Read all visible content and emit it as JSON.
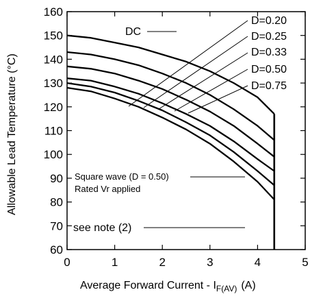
{
  "chart_data": {
    "type": "line",
    "title": "",
    "xlabel": "Average Forward Current - I",
    "xlabel_subscript": "F(AV)",
    "xlabel_unit": "(A)",
    "ylabel": "Allowable Lead Temperature (°C)",
    "xlim": [
      0,
      5
    ],
    "ylim": [
      60,
      160
    ],
    "x_ticks": [
      0,
      1,
      2,
      3,
      4,
      5
    ],
    "y_ticks": [
      60,
      70,
      80,
      90,
      100,
      110,
      120,
      130,
      140,
      150,
      160
    ],
    "grid": false,
    "series": [
      {
        "name": "DC",
        "x": [
          0,
          0.5,
          1,
          1.5,
          2,
          2.5,
          3,
          3.5,
          4,
          4.35
        ],
        "y": [
          150,
          149,
          147,
          145,
          142,
          139,
          135,
          130,
          124,
          117
        ]
      },
      {
        "name": "D=0.20",
        "x": [
          0,
          0.5,
          1,
          1.5,
          2,
          2.5,
          3,
          3.5,
          4,
          4.35
        ],
        "y": [
          143,
          142,
          140,
          137.5,
          134,
          130,
          125,
          119,
          112,
          106
        ]
      },
      {
        "name": "D=0.25",
        "x": [
          0,
          0.5,
          1,
          1.5,
          2,
          2.5,
          3,
          3.5,
          4,
          4.35
        ],
        "y": [
          137,
          136,
          134,
          131,
          127.5,
          123,
          118,
          112,
          104.5,
          99
        ]
      },
      {
        "name": "D=0.33",
        "x": [
          0,
          0.5,
          1,
          1.5,
          2,
          2.5,
          3,
          3.5,
          4,
          4.35
        ],
        "y": [
          132,
          131,
          128.5,
          125.5,
          121.5,
          117,
          112,
          105.5,
          98,
          93
        ]
      },
      {
        "name": "D=0.50",
        "x": [
          0,
          0.5,
          1,
          1.5,
          2,
          2.5,
          3,
          3.5,
          4,
          4.35
        ],
        "y": [
          130,
          128.5,
          126,
          122.5,
          118.5,
          113.5,
          108,
          101,
          93,
          87
        ]
      },
      {
        "name": "D=0.75",
        "x": [
          0,
          0.5,
          1,
          1.5,
          2,
          2.5,
          3,
          3.5,
          4,
          4.35
        ],
        "y": [
          128,
          126.5,
          123.5,
          120,
          115.5,
          110.5,
          104.5,
          97,
          88.5,
          81
        ]
      }
    ],
    "vertical_limit_x": 4.35,
    "annotations": {
      "dc_label": "DC",
      "series_labels": [
        "D=0.20",
        "D=0.25",
        "D=0.33",
        "D=0.50",
        "D=0.75"
      ],
      "note_line1": "Square wave (D = 0.50)",
      "note_line2": "Rated Vr  applied",
      "note_ref": "see note (2)"
    }
  }
}
